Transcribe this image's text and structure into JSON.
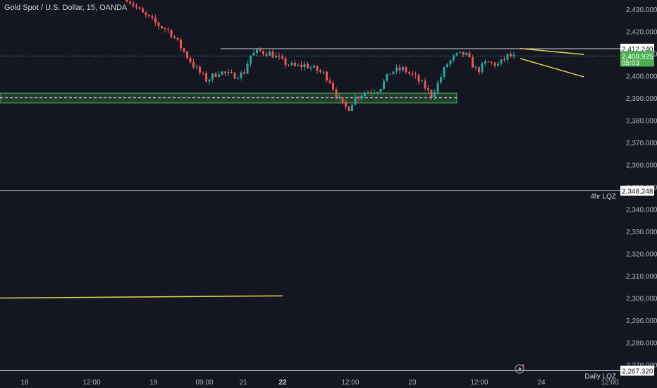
{
  "header": {
    "title": "Gold Spot / U.S. Dollar, 15, OANDA"
  },
  "colors": {
    "background": "#141722",
    "up": "#26a69a",
    "down": "#ef5350",
    "trendline": "#e6d34a",
    "zone_fill": "#2f5f3a",
    "zone_border": "#4caf50",
    "price_tag": "#4caf50",
    "level_line": "#d1d4dc",
    "grid_text": "#b2b5be"
  },
  "chart_data": {
    "type": "candlestick",
    "symbol": "Gold Spot / U.S. Dollar",
    "interval": "15",
    "source": "OANDA",
    "y_axis": {
      "range": [
        2265,
        2433
      ],
      "ticks": [
        "2,430.000",
        "2,420.000",
        "2,410.000",
        "2,400.000",
        "2,390.000",
        "2,380.000",
        "2,370.000",
        "2,360.000",
        "2,350.000",
        "2,340.000",
        "2,330.000",
        "2,320.000",
        "2,310.000",
        "2,300.000",
        "2,290.000",
        "2,280.000",
        "2,270.000"
      ],
      "tick_values": [
        2430,
        2420,
        2410,
        2400,
        2390,
        2380,
        2370,
        2360,
        2350,
        2340,
        2330,
        2320,
        2310,
        2300,
        2290,
        2280,
        2270
      ]
    },
    "x_axis": {
      "ticks": [
        "18",
        "12:00",
        "19",
        "09:00",
        "21",
        "22",
        "12:00",
        "23",
        "12:00",
        "24",
        "12:00"
      ],
      "bold_ticks": [
        "22"
      ]
    },
    "price_path": [
      [
        0,
        2435
      ],
      [
        5,
        2428
      ],
      [
        10,
        2423
      ],
      [
        14,
        2420
      ],
      [
        18,
        2412
      ],
      [
        22,
        2404
      ],
      [
        26,
        2398
      ],
      [
        30,
        2402
      ],
      [
        34,
        2400
      ],
      [
        38,
        2401
      ],
      [
        40,
        2409
      ],
      [
        43,
        2411
      ],
      [
        47,
        2410
      ],
      [
        51,
        2406
      ],
      [
        55,
        2404
      ],
      [
        58,
        2405
      ],
      [
        61,
        2403
      ],
      [
        64,
        2401
      ],
      [
        66,
        2398
      ],
      [
        68,
        2392
      ],
      [
        70,
        2387
      ],
      [
        72,
        2385
      ],
      [
        74,
        2390
      ],
      [
        78,
        2393
      ],
      [
        82,
        2394
      ],
      [
        86,
        2402
      ],
      [
        90,
        2403
      ],
      [
        94,
        2399
      ],
      [
        97,
        2395
      ],
      [
        99,
        2391
      ],
      [
        101,
        2396
      ],
      [
        104,
        2405
      ],
      [
        107,
        2409
      ],
      [
        110,
        2410
      ],
      [
        114,
        2402
      ],
      [
        117,
        2406
      ],
      [
        121,
        2405
      ],
      [
        124,
        2409
      ],
      [
        127,
        2408
      ]
    ],
    "levels": [
      {
        "kind": "resistance",
        "value": 2412.24,
        "tag": "2,412.240"
      },
      {
        "kind": "liquidity",
        "value": 2348.248,
        "tag": "2,348.248",
        "label": "4hr LQZ"
      },
      {
        "kind": "liquidity",
        "value": 2267.32,
        "tag": "2,267.320",
        "label": "Daily LQZ"
      }
    ],
    "current_price": {
      "value": 2408.925,
      "tag": "2,408.925",
      "countdown": "05:03"
    },
    "support_zone": {
      "top": 2392.2,
      "bottom": 2387.8,
      "mid": 2390.1
    },
    "wedge": {
      "upper": [
        [
          112,
          2409.6
        ],
        [
          127,
          2412.3
        ]
      ],
      "lower": [
        [
          112,
          2399.5
        ],
        [
          127,
          2407.8
        ]
      ]
    },
    "long_trendline": [
      [
        0,
        2300.0
      ],
      [
        69,
        2301.0
      ]
    ],
    "annotations": [
      "4hr LQZ",
      "Daily LQZ"
    ]
  }
}
